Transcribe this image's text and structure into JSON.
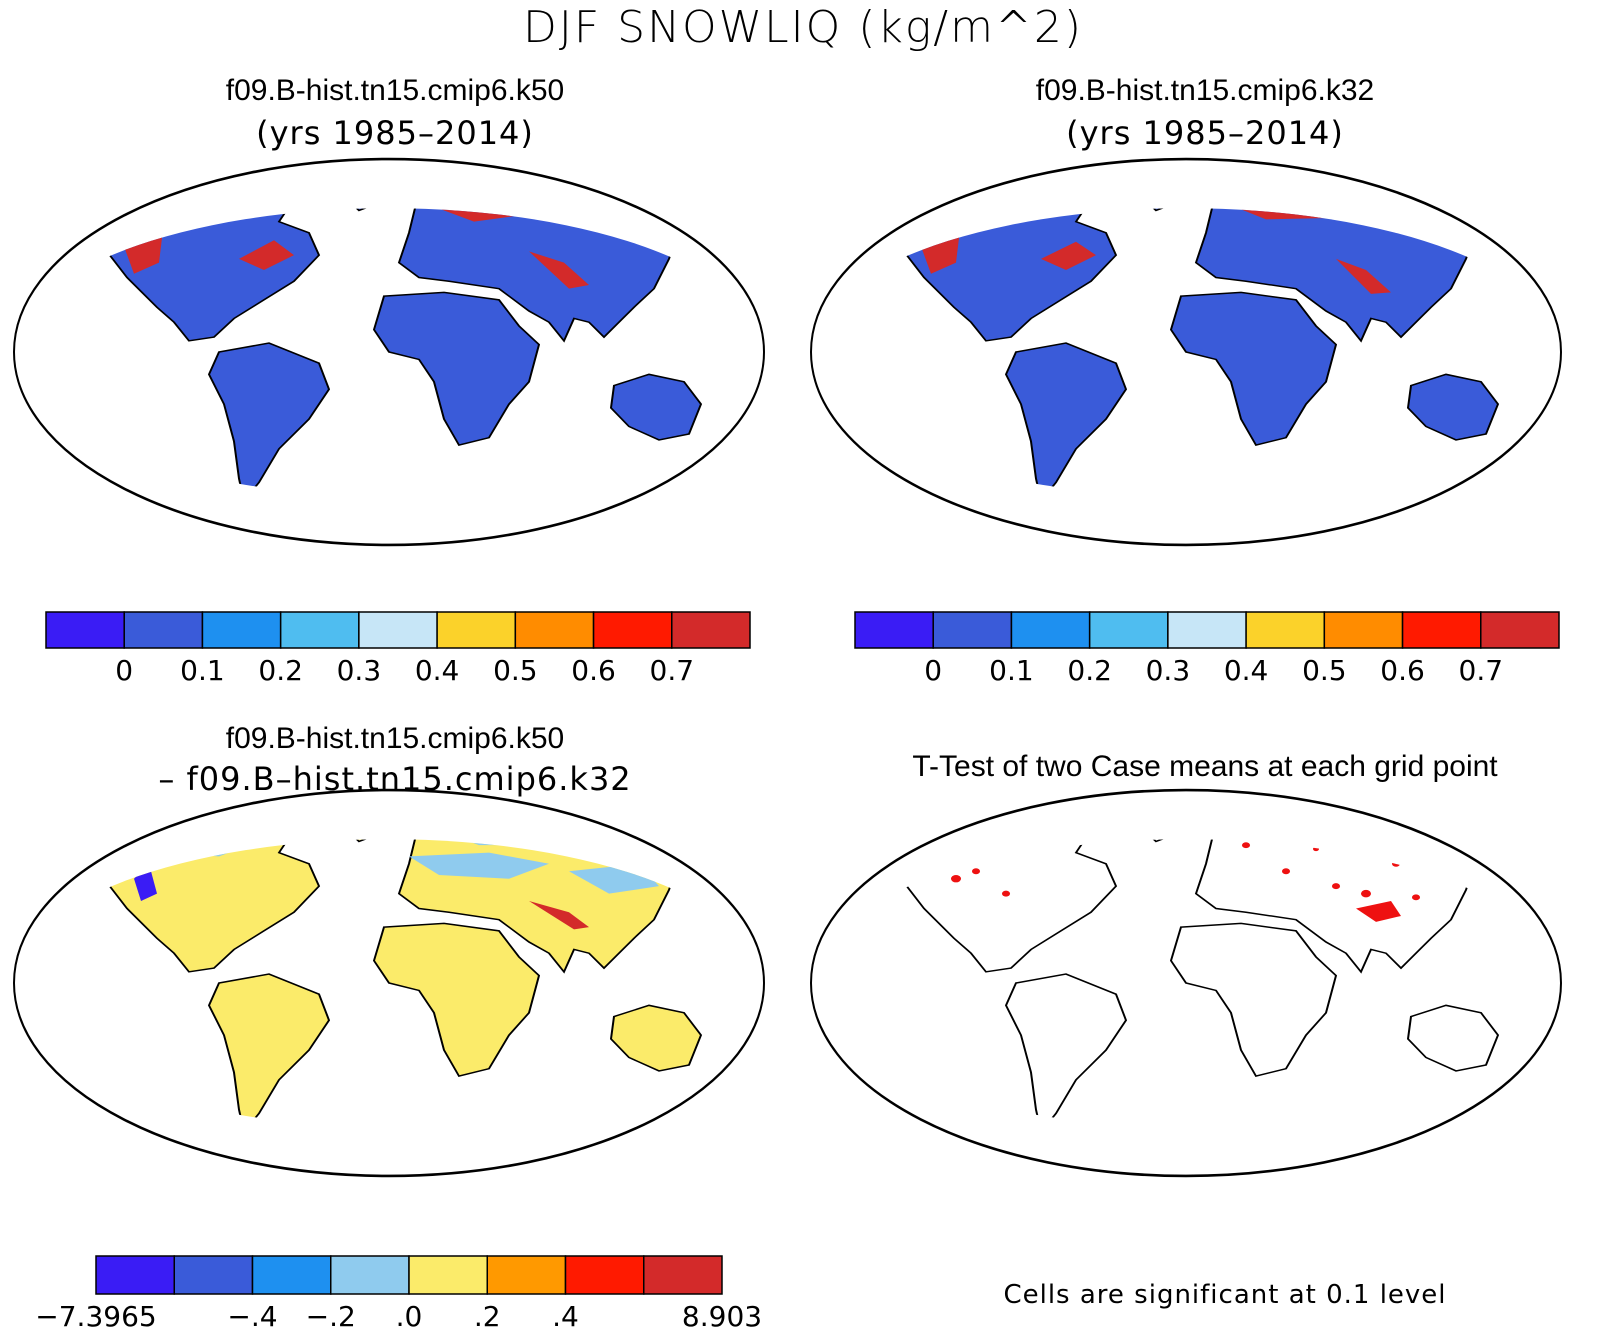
{
  "main_title": "DJF SNOWLIQ (kg/m^2)",
  "panels": {
    "top_left": {
      "title": "f09.B-hist.tn15.cmip6.k50",
      "subtitle": "(yrs 1985–2014)"
    },
    "top_right": {
      "title": "f09.B-hist.tn15.cmip6.k32",
      "subtitle": "(yrs 1985–2014)"
    },
    "bottom_left": {
      "title": "f09.B-hist.tn15.cmip6.k50",
      "subtitle": "– f09.B–hist.tn15.cmip6.k32"
    },
    "bottom_right": {
      "title": "T-Test of two Case means at each grid point"
    }
  },
  "colorbars": {
    "mean": {
      "colors": [
        "#3a1cf5",
        "#3a5bd9",
        "#1e90f0",
        "#4fbdf0",
        "#c7e6f7",
        "#fbd22a",
        "#ff8c00",
        "#ff1a00",
        "#d32a2a"
      ],
      "labels": [
        "0",
        "0.1",
        "0.2",
        "0.3",
        "0.4",
        "0.5",
        "0.6",
        "0.7"
      ]
    },
    "diff": {
      "colors": [
        "#3a1cf5",
        "#3a5bd9",
        "#1e90f0",
        "#8fcbee",
        "#fbeb6a",
        "#ff9900",
        "#ff1a00",
        "#d32a2a"
      ],
      "labels": [
        "−7.3965",
        "−.4",
        "−.2",
        ".0",
        ".2",
        ".4",
        "8.903"
      ]
    }
  },
  "significance_note": "Cells are significant at 0.1 level",
  "colors": {
    "land_mean": "#3a5bd9",
    "snow_high": "#d32a2a",
    "diff_land": "#fbeb6a",
    "diff_neg": "#8fcbee",
    "sig": "#ee1111"
  }
}
